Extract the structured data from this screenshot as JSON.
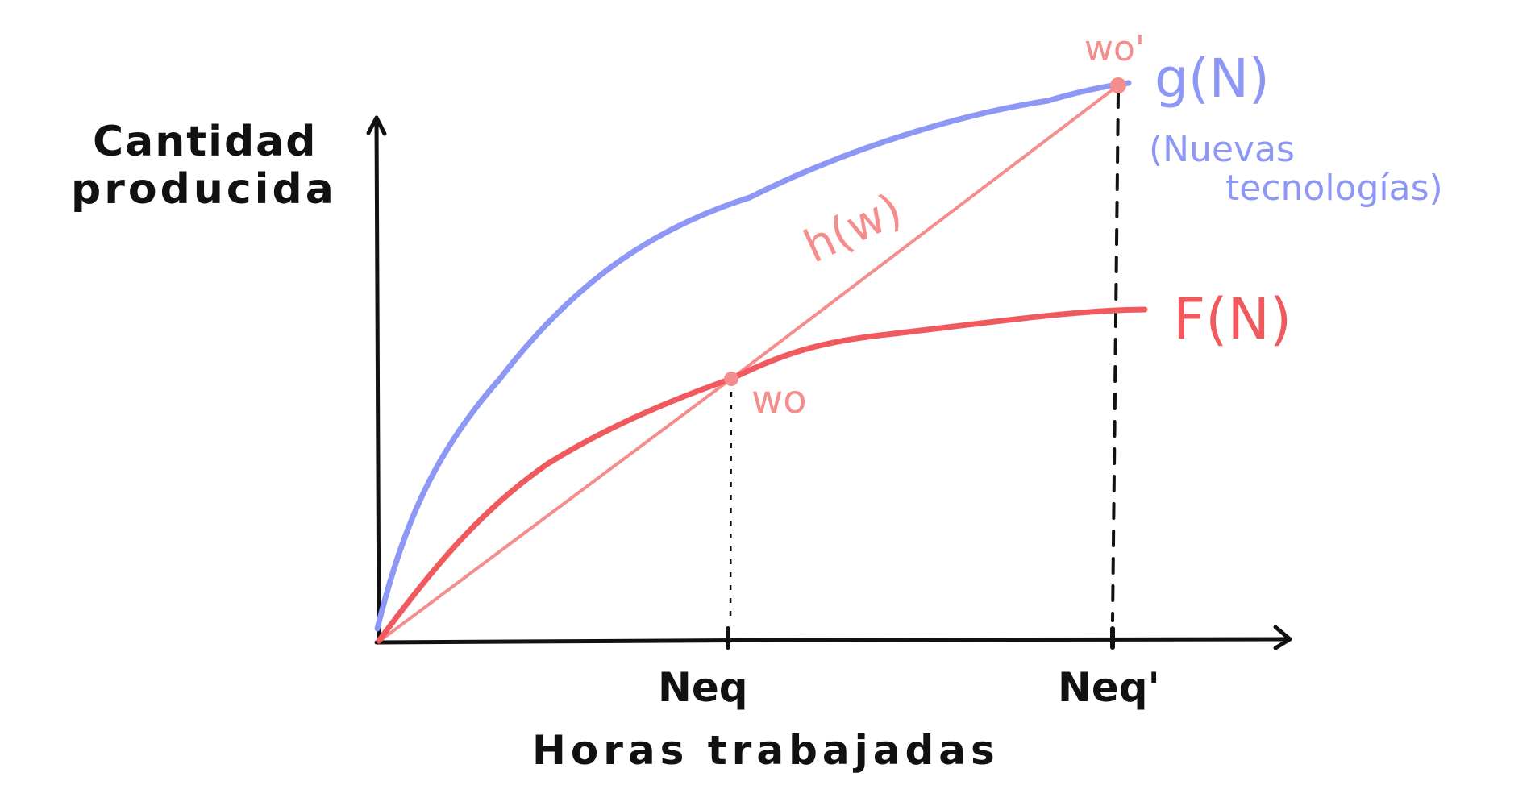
{
  "y_axis_label_line1": "Cantidad",
  "y_axis_label_line2": "producida",
  "x_axis_label": "Horas trabajadas",
  "curve_g_label": "g(N)",
  "curve_g_note_line1": "(Nuevas",
  "curve_g_note_line2": "tecnologías)",
  "curve_f_label": "F(N)",
  "line_h_label": "h(w)",
  "point_w0_label": "wo",
  "point_w0_prime_label": "wo'",
  "tick_neq_label": "Neq",
  "tick_neq_prime_label": "Neq'",
  "colors": {
    "axis": "#111111",
    "g_curve": "#8d97f5",
    "f_curve": "#f05a5f",
    "h_line": "#f58d8d",
    "points": "#f58d8d"
  }
}
